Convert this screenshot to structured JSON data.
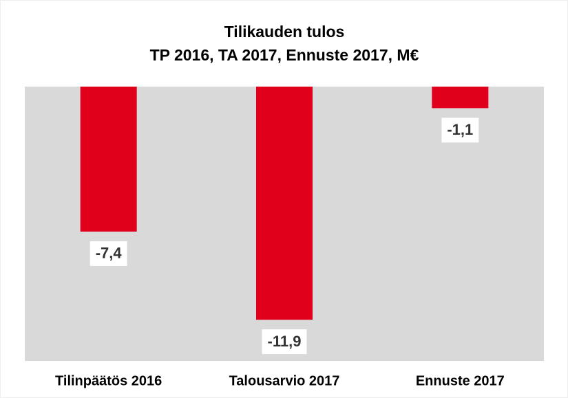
{
  "chart_data": {
    "type": "bar",
    "title": "Tilikauden tulos",
    "subtitle": "TP 2016, TA 2017, Ennuste 2017, M€",
    "categories": [
      "Tilinpäätös 2016",
      "Talousarvio 2017",
      "Ennuste 2017"
    ],
    "values": [
      -7.4,
      -11.9,
      -1.1
    ],
    "value_labels": [
      "-7,4",
      "-11,9",
      "-1,1"
    ],
    "color": "#e0001b",
    "ylim": [
      -14,
      0
    ],
    "plot_background": "#d9d9d9"
  }
}
